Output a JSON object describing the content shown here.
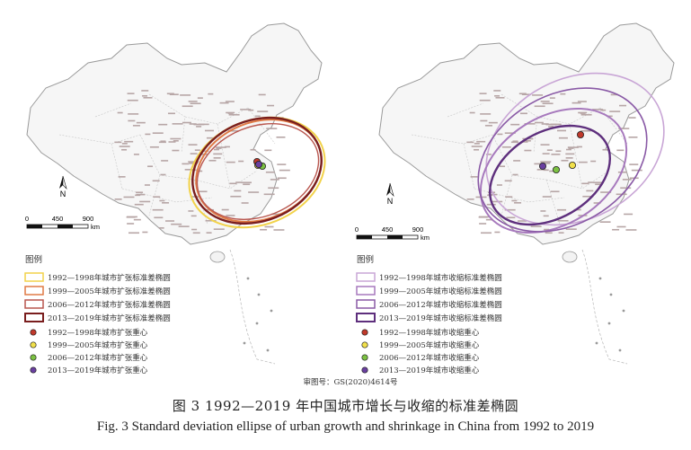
{
  "left_map": {
    "legend_title": "图例",
    "scale": {
      "ticks": [
        "0",
        "450",
        "900"
      ],
      "unit": "km"
    },
    "north": "N",
    "ellipse_legend": [
      {
        "label": "1992—1998年城市扩张标准差椭圆",
        "color": "#f2d24a"
      },
      {
        "label": "1999—2005年城市扩张标准差椭圆",
        "color": "#e07a45"
      },
      {
        "label": "2006—2012年城市扩张标准差椭圆",
        "color": "#b9574f"
      },
      {
        "label": "2013—2019年城市扩张标准差椭圆",
        "color": "#7a1e1e"
      }
    ],
    "center_legend": [
      {
        "label": "1992—1998年城市扩张重心",
        "color": "#c0392b"
      },
      {
        "label": "1999—2005年城市扩张重心",
        "color": "#f1e04a"
      },
      {
        "label": "2006—2012年城市扩张重心",
        "color": "#7cc142"
      },
      {
        "label": "2013—2019年城市扩张重心",
        "color": "#6a3fa0"
      }
    ]
  },
  "right_map": {
    "legend_title": "图例",
    "scale": {
      "ticks": [
        "0",
        "450",
        "900"
      ],
      "unit": "km"
    },
    "north": "N",
    "ellipse_legend": [
      {
        "label": "1992—1998年城市收缩标准差椭圆",
        "color": "#c9a6d6"
      },
      {
        "label": "1999—2005年城市收缩标准差椭圆",
        "color": "#a779bd"
      },
      {
        "label": "2006—2012年城市收缩标准差椭圆",
        "color": "#8a5aa6"
      },
      {
        "label": "2013—2019年城市收缩标准差椭圆",
        "color": "#5e2f7d"
      }
    ],
    "center_legend": [
      {
        "label": "1992—1998年城市收缩重心",
        "color": "#c0392b"
      },
      {
        "label": "1999—2005年城市收缩重心",
        "color": "#f1e04a"
      },
      {
        "label": "2006—2012年城市收缩重心",
        "color": "#7cc142"
      },
      {
        "label": "2013—2019年城市收缩重心",
        "color": "#6a3fa0"
      }
    ]
  },
  "approval_number": "审图号：GS(2020)4614号",
  "caption_zh": "图 3   1992—2019 年中国城市增长与收缩的标准差椭圆",
  "caption_en": "Fig. 3   Standard deviation ellipse of urban growth and shrinkage in China from 1992 to 2019"
}
